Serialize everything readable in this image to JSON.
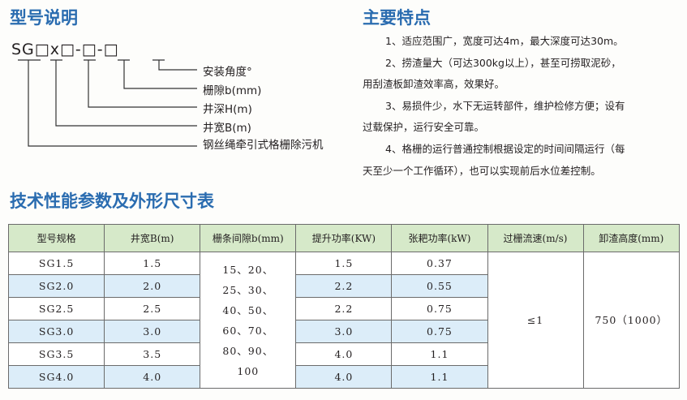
{
  "model_section": {
    "title": "型号说明",
    "code": "SG□x□-□-□",
    "labels": [
      "安装角度°",
      "栅隙b(mm)",
      "井深H(m)",
      "井宽B(m)",
      "钢丝绳牵引式格栅除污机"
    ]
  },
  "features": {
    "title": "主要特点",
    "lines": [
      "1、适应范围广，宽度可达4m，最大深度可达30m。",
      "2、捞渣量大（可达300kg以上），甚至可捞取泥砂，",
      "用刮渣板卸渣效率高，效果好。",
      "3、易损件少，水下无运转部件，维护检修方便；设有",
      "过载保护，运行安全可靠。",
      "4、格栅的运行普通控制根据设定的时间间隔运行（每",
      "天至少一个工作循环），也可以实现前后水位差控制。"
    ]
  },
  "table": {
    "title": "技术性能参数及外形尺寸表",
    "headers": [
      "型号规格",
      "井宽B(m)",
      "栅条间隙b(mm)",
      "提升功率(KW)",
      "张耙功率(kW)",
      "过栅流速(m/s)",
      "卸渣高度(mm)"
    ],
    "rows": [
      {
        "model": "SG1.5",
        "width": "1.5",
        "lift": "1.5",
        "rake": "0.37"
      },
      {
        "model": "SG2.0",
        "width": "2.0",
        "lift": "2.2",
        "rake": "0.55"
      },
      {
        "model": "SG2.5",
        "width": "2.5",
        "lift": "2.2",
        "rake": "0.75"
      },
      {
        "model": "SG3.0",
        "width": "3.0",
        "lift": "3.0",
        "rake": "0.75"
      },
      {
        "model": "SG3.5",
        "width": "3.5",
        "lift": "4.0",
        "rake": "1.1"
      },
      {
        "model": "SG4.0",
        "width": "4.0",
        "lift": "4.0",
        "rake": "1.1"
      }
    ],
    "gap_lines": [
      "15、20、",
      "25、30、",
      "40、50、",
      "60、70、",
      "80、90、",
      "100"
    ],
    "flow": "≤1",
    "discharge": "750（1000）"
  },
  "colors": {
    "title": "#2a6cb0",
    "header_bg": "#d6e9c9",
    "alt_row_bg": "#dcedf9"
  }
}
